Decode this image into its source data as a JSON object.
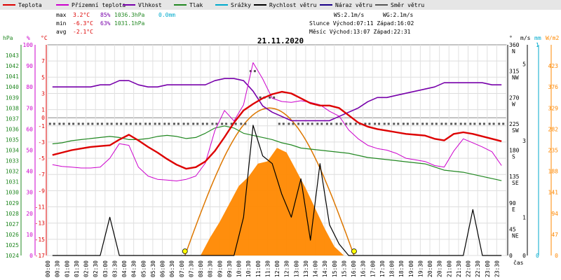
{
  "legend": [
    {
      "label": "Teplota",
      "color": "#dd0000"
    },
    {
      "label": "Přízemní teplota",
      "color": "#cc00cc"
    },
    {
      "label": "Vlhkost",
      "color": "#7700aa"
    },
    {
      "label": "Tlak",
      "color": "#228822"
    },
    {
      "label": "Srážky",
      "color": "#00aacc"
    },
    {
      "label": "Rychlost větru",
      "color": "#000000"
    },
    {
      "label": "Náraz větru",
      "color": "#1a0088"
    },
    {
      "label": "Směr větru",
      "color": "#555555"
    }
  ],
  "stats": {
    "max_label": "max",
    "max_temp": "3.2°C",
    "max_hum": "85%",
    "max_press": "1036.3hPa",
    "max_rain": "0.0mm",
    "min_label": "min",
    "min_temp": "-6.3°C",
    "min_hum": "63%",
    "min_press": "1031.1hPa",
    "avg_label": "avg",
    "avg_temp": "-2.1°C"
  },
  "info": {
    "ws": "WS:2.1m/s",
    "wg": "WG:2.1m/s",
    "sun": "Slunce Východ:07:11  Západ:16:02",
    "moon": "Měsíc  Východ:13:07  Západ:22:31"
  },
  "date": "21.11.2020",
  "axes": {
    "hpa_unit": "hPa",
    "pct_unit": "%",
    "c_unit": "°C",
    "deg_unit": "°",
    "ms_unit": "m/s",
    "mm_unit": "mm",
    "wm2_unit": "W/m2",
    "time_label": "čas"
  },
  "chart_data": {
    "type": "line",
    "date": "21.11.2020",
    "x_time": [
      "00:00",
      "00:30",
      "01:00",
      "01:30",
      "02:00",
      "02:30",
      "03:00",
      "03:30",
      "04:00",
      "04:30",
      "05:00",
      "05:30",
      "06:00",
      "06:30",
      "07:00",
      "07:30",
      "08:00",
      "08:30",
      "09:00",
      "09:30",
      "10:00",
      "10:30",
      "11:00",
      "11:30",
      "12:00",
      "12:30",
      "13:00",
      "13:30",
      "14:00",
      "14:30",
      "15:00",
      "15:30",
      "16:00",
      "16:30",
      "17:00",
      "17:30",
      "18:00",
      "18:30",
      "19:00",
      "19:30",
      "20:00",
      "20:30",
      "21:00",
      "21:30",
      "22:00",
      "22:30",
      "23:00",
      "23:30"
    ],
    "pressure_axis": {
      "ticks": [
        1043,
        1042,
        1041,
        1040,
        1039,
        1038,
        1037,
        1036,
        1035,
        1034,
        1033,
        1032,
        1031,
        1030,
        1029,
        1028,
        1027,
        1026,
        1025,
        1024
      ],
      "range": [
        1024,
        1043
      ]
    },
    "humidity_axis": {
      "ticks": [
        100,
        90,
        80,
        70,
        60,
        50,
        40,
        30,
        20,
        10,
        0
      ],
      "range": [
        0,
        100
      ]
    },
    "temp_axis": {
      "ticks": [
        7,
        5,
        3,
        1,
        0,
        -1,
        -3,
        -5,
        -7,
        -9,
        -11,
        -13,
        -15,
        -17
      ],
      "range": [
        -17,
        9
      ]
    },
    "wind_dir_axis": {
      "ticks": [
        {
          "deg": 360,
          "dir": "N"
        },
        {
          "deg": 315,
          "dir": "NW"
        },
        {
          "deg": 270,
          "dir": "W"
        },
        {
          "deg": 225,
          "dir": "SW"
        },
        {
          "deg": 180,
          "dir": "S"
        },
        {
          "deg": 135,
          "dir": "SE"
        },
        {
          "deg": 90,
          "dir": "E"
        },
        {
          "deg": 45,
          "dir": "NE"
        },
        {
          "deg": 0,
          "dir": ""
        }
      ]
    },
    "wind_speed_axis": {
      "ticks": [
        5,
        3,
        1,
        0
      ]
    },
    "rain_axis": {
      "ticks": [
        1,
        0
      ]
    },
    "solar_axis": {
      "ticks": [
        423,
        376,
        329,
        282,
        235,
        188,
        141,
        94,
        47,
        0
      ]
    },
    "series": [
      {
        "name": "Teplota",
        "axis": "temp",
        "values": [
          -4.6,
          -4.3,
          -4.0,
          -3.8,
          -3.6,
          -3.5,
          -3.4,
          -2.7,
          -2.1,
          -2.8,
          -3.6,
          -4.3,
          -5.1,
          -5.8,
          -6.3,
          -6.1,
          -5.4,
          -4.1,
          -2.4,
          -0.6,
          0.9,
          1.7,
          2.4,
          2.9,
          3.2,
          3.0,
          2.4,
          1.8,
          1.5,
          1.5,
          1.2,
          0.3,
          -0.6,
          -1.1,
          -1.4,
          -1.6,
          -1.8,
          -2.0,
          -2.1,
          -2.2,
          -2.6,
          -2.8,
          -2.0,
          -1.8,
          -2.0,
          -2.3,
          -2.6,
          -2.9
        ]
      },
      {
        "name": "Přízemní teplota",
        "axis": "temp",
        "values": [
          -5.8,
          -6.0,
          -6.1,
          -6.2,
          -6.2,
          -6.1,
          -5.0,
          -3.2,
          -3.4,
          -6.1,
          -7.2,
          -7.6,
          -7.7,
          -7.8,
          -7.6,
          -7.2,
          -5.6,
          -1.6,
          0.9,
          -0.4,
          1.6,
          6.8,
          4.8,
          2.4,
          2.0,
          1.9,
          2.1,
          1.9,
          1.6,
          0.8,
          0.2,
          -1.5,
          -2.6,
          -3.4,
          -3.8,
          -4.0,
          -4.4,
          -5.0,
          -5.2,
          -5.4,
          -5.9,
          -6.1,
          -4.1,
          -2.6,
          -3.1,
          -3.6,
          -4.2,
          -5.9
        ]
      },
      {
        "name": "Vlhkost",
        "axis": "humidity",
        "values": [
          80,
          80,
          80,
          80,
          80,
          81,
          81,
          83,
          83,
          81,
          80,
          80,
          81,
          81,
          81,
          81,
          81,
          83,
          84,
          84,
          83,
          78,
          71,
          68,
          66,
          64,
          64,
          64,
          64,
          64,
          66,
          68,
          70,
          73,
          75,
          75,
          76,
          77,
          78,
          79,
          80,
          82,
          82,
          82,
          82,
          82,
          81,
          81
        ]
      },
      {
        "name": "Tlak",
        "axis": "pressure",
        "values": [
          1034.6,
          1034.7,
          1034.9,
          1035.0,
          1035.1,
          1035.2,
          1035.3,
          1035.2,
          1035.0,
          1035.0,
          1035.1,
          1035.3,
          1035.4,
          1035.3,
          1035.1,
          1035.2,
          1035.6,
          1036.1,
          1036.3,
          1036.1,
          1035.6,
          1035.4,
          1035.2,
          1035.0,
          1034.7,
          1034.5,
          1034.2,
          1034.1,
          1034.0,
          1033.9,
          1033.8,
          1033.7,
          1033.5,
          1033.3,
          1033.2,
          1033.1,
          1033.0,
          1032.9,
          1032.8,
          1032.7,
          1032.4,
          1032.1,
          1032.0,
          1031.9,
          1031.7,
          1031.5,
          1031.3,
          1031.1
        ]
      },
      {
        "name": "Rychlost větru",
        "axis": "wind_speed",
        "values": [
          0,
          0,
          0,
          0,
          0,
          0,
          1.0,
          0,
          0,
          0,
          0,
          0,
          0,
          0,
          0,
          0,
          0,
          0,
          0,
          0,
          1.0,
          3.4,
          2.6,
          2.4,
          1.6,
          1.0,
          2.0,
          0.4,
          2.4,
          0.8,
          0.3,
          0,
          0,
          0,
          0,
          0,
          0,
          0,
          0,
          0,
          0,
          0,
          0,
          0,
          1.2,
          0,
          0,
          0
        ]
      },
      {
        "name": "Směr větru",
        "axis": "wind_dir",
        "values": [
          225,
          225,
          225,
          225,
          225,
          225,
          225,
          225,
          225,
          225,
          225,
          225,
          225,
          225,
          225,
          225,
          225,
          225,
          225,
          225,
          225,
          315,
          270,
          270,
          225,
          225,
          225,
          225,
          225,
          225,
          225,
          225,
          225,
          225,
          225,
          225,
          225,
          225,
          225,
          225,
          225,
          225,
          225,
          225,
          225,
          225,
          225,
          225
        ]
      },
      {
        "name": "Srážky",
        "axis": "rain",
        "values": [
          0,
          0,
          0,
          0,
          0,
          0,
          0,
          0,
          0,
          0,
          0,
          0,
          0,
          0,
          0,
          0,
          0,
          0,
          0,
          0,
          0,
          0,
          0,
          0,
          0,
          0,
          0,
          0,
          0,
          0,
          0,
          0,
          0,
          0,
          0,
          0,
          0,
          0,
          0,
          0,
          0,
          0,
          0,
          0,
          0,
          0,
          0,
          0
        ]
      }
    ],
    "solar_radiation": {
      "x_time": [
        "08:00",
        "08:30",
        "09:00",
        "09:30",
        "10:00",
        "10:30",
        "11:00",
        "11:30",
        "12:00",
        "12:30",
        "13:00",
        "13:30",
        "14:00",
        "14:30",
        "15:00",
        "15:30"
      ],
      "values": [
        0,
        40,
        75,
        115,
        155,
        175,
        205,
        210,
        240,
        230,
        190,
        150,
        105,
        60,
        20,
        0
      ]
    },
    "sun_theoretical": {
      "rise": "07:11",
      "set": "16:02",
      "peak_value": 329
    },
    "sunrise_time": "07:11",
    "sunset_time": "16:02",
    "grid": true
  }
}
